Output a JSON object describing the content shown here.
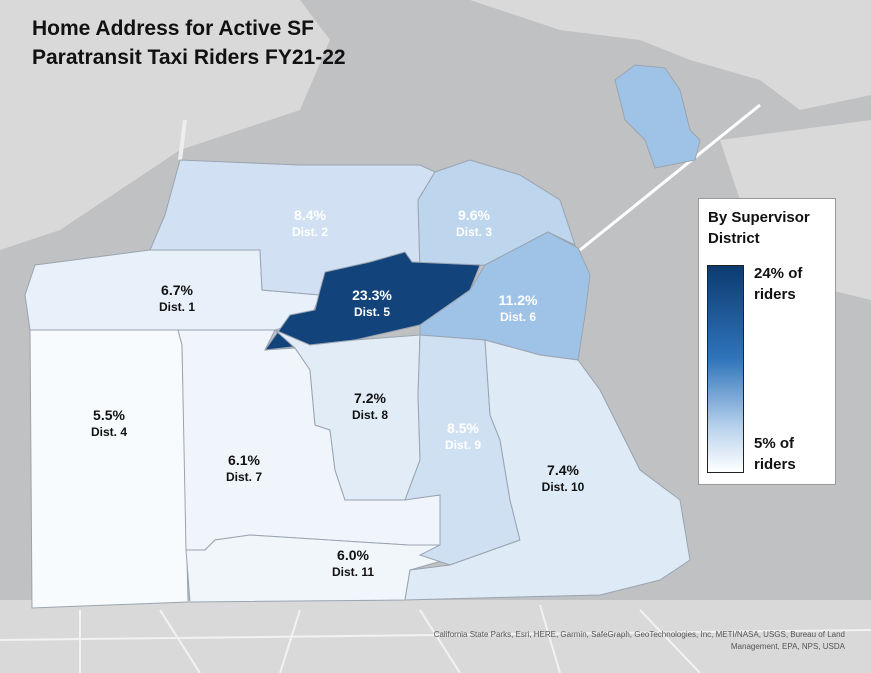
{
  "title_lines": [
    "Home Address for Active SF",
    "Paratransit Taxi Riders FY21-22"
  ],
  "districts": [
    {
      "id": "dist-1",
      "pct": "6.7%",
      "name": "Dist. 1",
      "value": 6.7
    },
    {
      "id": "dist-2",
      "pct": "8.4%",
      "name": "Dist. 2",
      "value": 8.4
    },
    {
      "id": "dist-3",
      "pct": "9.6%",
      "name": "Dist. 3",
      "value": 9.6
    },
    {
      "id": "dist-4",
      "pct": "5.5%",
      "name": "Dist. 4",
      "value": 5.5
    },
    {
      "id": "dist-5",
      "pct": "23.3%",
      "name": "Dist. 5",
      "value": 23.3
    },
    {
      "id": "dist-6",
      "pct": "11.2%",
      "name": "Dist. 6",
      "value": 11.2
    },
    {
      "id": "dist-7",
      "pct": "6.1%",
      "name": "Dist. 7",
      "value": 6.1
    },
    {
      "id": "dist-8",
      "pct": "7.2%",
      "name": "Dist. 8",
      "value": 7.2
    },
    {
      "id": "dist-9",
      "pct": "8.5%",
      "name": "Dist. 9",
      "value": 8.5
    },
    {
      "id": "dist-10",
      "pct": "7.4%",
      "name": "Dist. 10",
      "value": 7.4
    },
    {
      "id": "dist-11",
      "pct": "6.0%",
      "name": "Dist. 11",
      "value": 6.0
    }
  ],
  "legend": {
    "title": "By Supervisor District",
    "max_label": "24% of riders",
    "min_label": "5% of riders",
    "max_value": 24,
    "min_value": 5
  },
  "attribution": "California State Parks, Esri, HERE, Garmin, SafeGraph, GeoTechnologies, Inc, METI/NASA, USGS, Bureau of Land Management, EPA, NPS, USDA",
  "colors": {
    "water": "#bfc1c3",
    "land": "#dcdcdc",
    "scale_low": "#ffffff",
    "scale_high": "#0d3b70"
  }
}
